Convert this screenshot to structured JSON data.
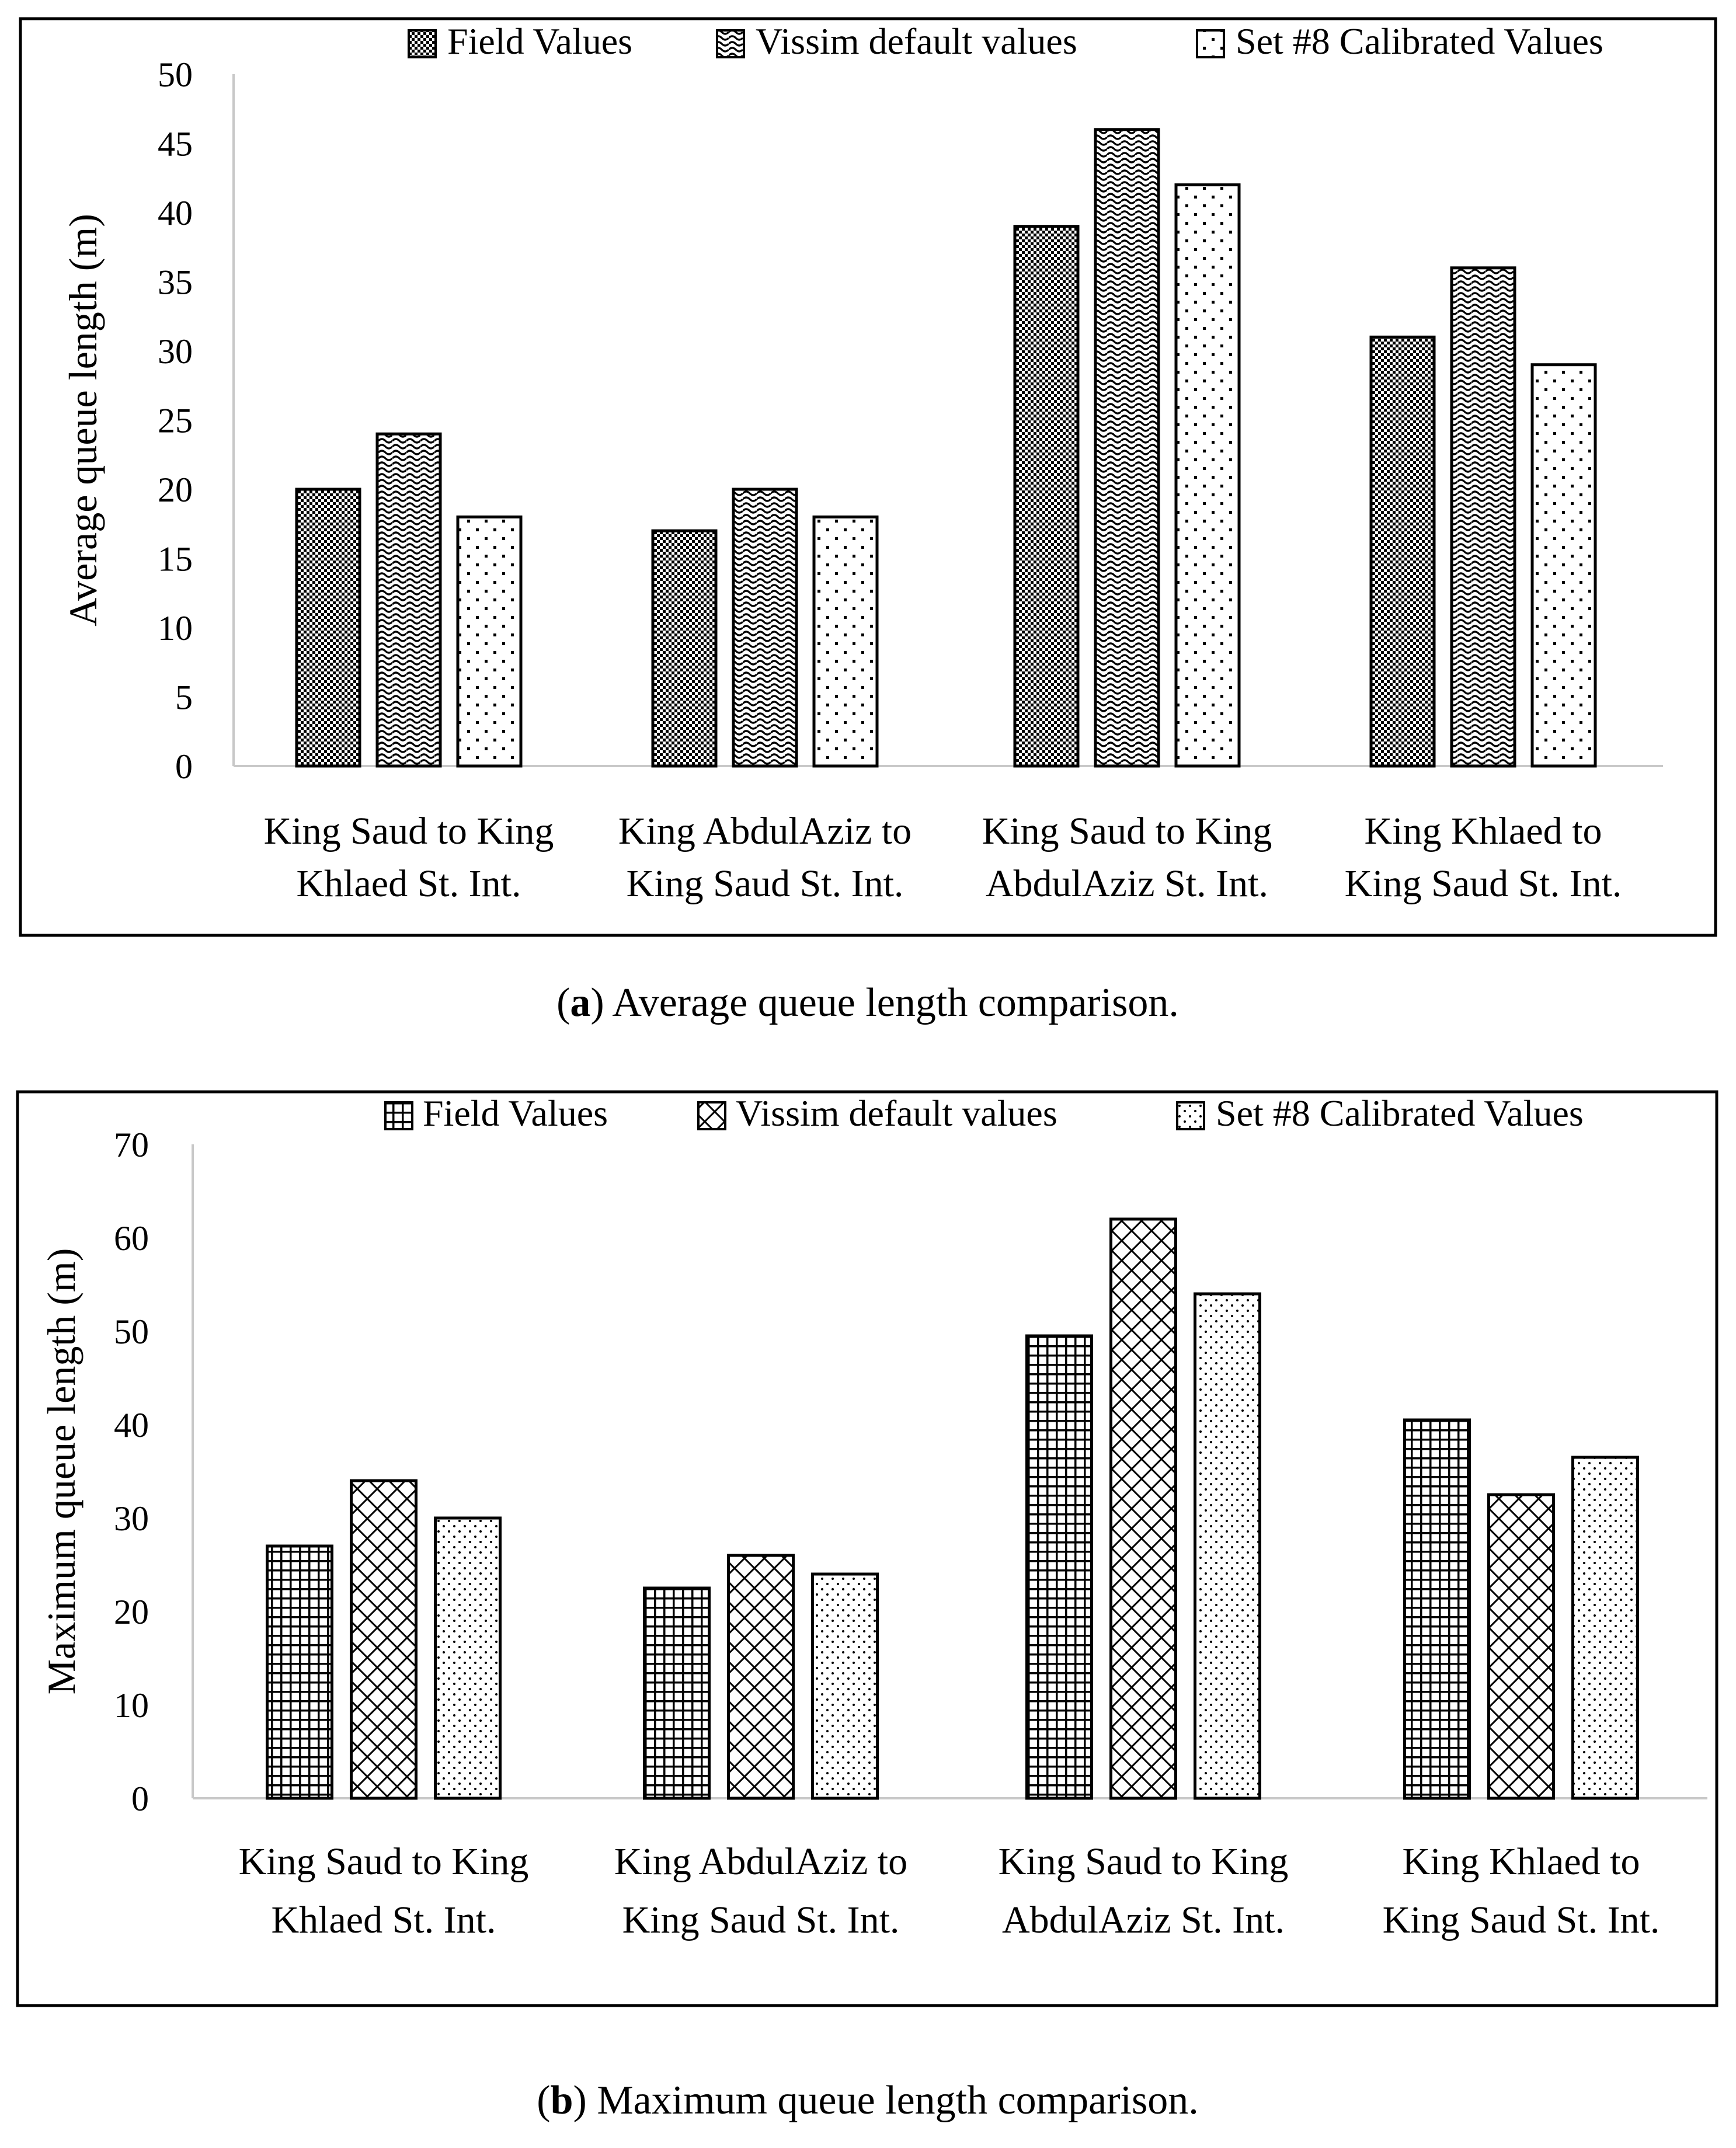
{
  "panels": [
    {
      "caption_letter": "a",
      "caption_text": ") Average queue length comparison.",
      "caption_open": "("
    },
    {
      "caption_letter": "b",
      "caption_text": ") Maximum queue length comparison.",
      "caption_open": "("
    }
  ],
  "chart_data": [
    {
      "type": "bar",
      "title": "",
      "xlabel": "",
      "ylabel": "Average queue length (m)",
      "ylim": [
        0,
        50
      ],
      "yticks": [
        0,
        5,
        10,
        15,
        20,
        25,
        30,
        35,
        40,
        45,
        50
      ],
      "grid": false,
      "legend_position": "top-right",
      "categories": [
        [
          "King Saud to King",
          "Khlaed St. Int."
        ],
        [
          "King AbdulAziz to",
          "King Saud St. Int."
        ],
        [
          "King Saud to King",
          "AbdulAziz St. Int."
        ],
        [
          "King Khlaed to",
          "King Saud St. Int."
        ]
      ],
      "series": [
        {
          "name": "Field Values",
          "pattern": "checker-dense",
          "values": [
            20,
            17,
            39,
            31
          ]
        },
        {
          "name": "Vissim default values",
          "pattern": "wave",
          "values": [
            24,
            20,
            46,
            36
          ]
        },
        {
          "name": "Set #8 Calibrated Values",
          "pattern": "sparse-dots",
          "values": [
            18,
            18,
            42,
            29
          ]
        }
      ]
    },
    {
      "type": "bar",
      "title": "",
      "xlabel": "",
      "ylabel": "Maximum queue length (m)",
      "ylim": [
        0,
        70
      ],
      "yticks": [
        0,
        10,
        20,
        30,
        40,
        50,
        60,
        70
      ],
      "grid": false,
      "legend_position": "top-right",
      "categories": [
        [
          "King Saud to King",
          "Khlaed St. Int."
        ],
        [
          "King AbdulAziz to",
          "King Saud St. Int."
        ],
        [
          "King Saud to King",
          "AbdulAziz St. Int."
        ],
        [
          "King Khlaed to",
          "King Saud St. Int."
        ]
      ],
      "series": [
        {
          "name": "Field Values",
          "pattern": "grid",
          "values": [
            27,
            22.5,
            49.5,
            40.5
          ]
        },
        {
          "name": "Vissim default values",
          "pattern": "crosshatch",
          "values": [
            34,
            26,
            62,
            32.5
          ]
        },
        {
          "name": "Set #8 Calibrated Values",
          "pattern": "fine-dots",
          "values": [
            30,
            24,
            54,
            36.5
          ]
        }
      ]
    }
  ]
}
